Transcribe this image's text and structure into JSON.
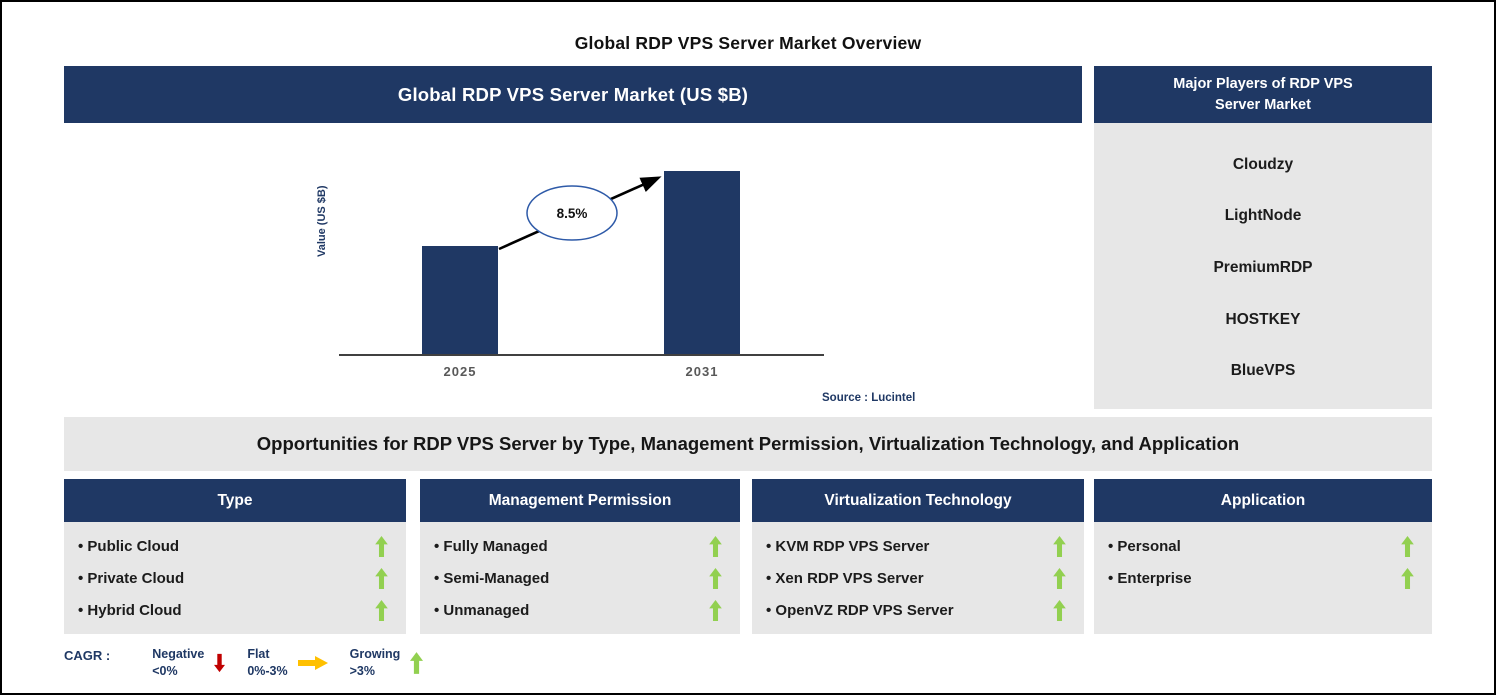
{
  "page_title": "Global RDP VPS  Server Market Overview",
  "colors": {
    "navy": "#1f3864",
    "panel_gray": "#e7e7e7",
    "growing_green": "#92d050",
    "negative_red": "#c00000",
    "flat_amber": "#ffc000",
    "bar_color": "#1f3864"
  },
  "chart_panel": {
    "header": "Global RDP VPS  Server Market (US $B)",
    "source": "Source : Lucintel"
  },
  "chart_data": {
    "type": "bar",
    "title": "Global RDP VPS  Server Market (US $B)",
    "categories": [
      "2025",
      "2031"
    ],
    "values": [
      1.0,
      1.7
    ],
    "values_note": "axis unlabeled; values are relative bar heights implying ~8.5% CAGR 2025-2031",
    "ylabel": "Value (US $B)",
    "annotation": "8.5%",
    "bar_color": "#1f3864",
    "legend_position": "none",
    "grid": false
  },
  "players_panel": {
    "header": "Major Players of RDP VPS Server Market",
    "items": [
      "Cloudzy",
      "LightNode",
      "PremiumRDP",
      "HOSTKEY",
      "BlueVPS"
    ]
  },
  "opportunities_banner": "Opportunities for RDP VPS Server by Type, Management Permission, Virtualization Technology, and Application",
  "columns": [
    {
      "header": "Type",
      "items": [
        {
          "label": "Public Cloud",
          "trend": "up"
        },
        {
          "label": "Private Cloud",
          "trend": "up"
        },
        {
          "label": "Hybrid Cloud",
          "trend": "up"
        }
      ]
    },
    {
      "header": "Management Permission",
      "items": [
        {
          "label": "Fully Managed",
          "trend": "up"
        },
        {
          "label": "Semi-Managed",
          "trend": "up"
        },
        {
          "label": "Unmanaged",
          "trend": "up"
        }
      ]
    },
    {
      "header": "Virtualization Technology",
      "items": [
        {
          "label": "KVM RDP VPS Server",
          "trend": "up"
        },
        {
          "label": "Xen RDP VPS Server",
          "trend": "up"
        },
        {
          "label": "OpenVZ RDP VPS Server",
          "trend": "up"
        }
      ]
    },
    {
      "header": "Application",
      "items": [
        {
          "label": "Personal",
          "trend": "up"
        },
        {
          "label": "Enterprise",
          "trend": "up"
        }
      ]
    }
  ],
  "legend": {
    "label": "CAGR :",
    "items": [
      {
        "name": "Negative",
        "range": "<0%",
        "direction": "down"
      },
      {
        "name": "Flat",
        "range": "0%-3%",
        "direction": "right"
      },
      {
        "name": "Growing",
        "range": ">3%",
        "direction": "up"
      }
    ]
  }
}
